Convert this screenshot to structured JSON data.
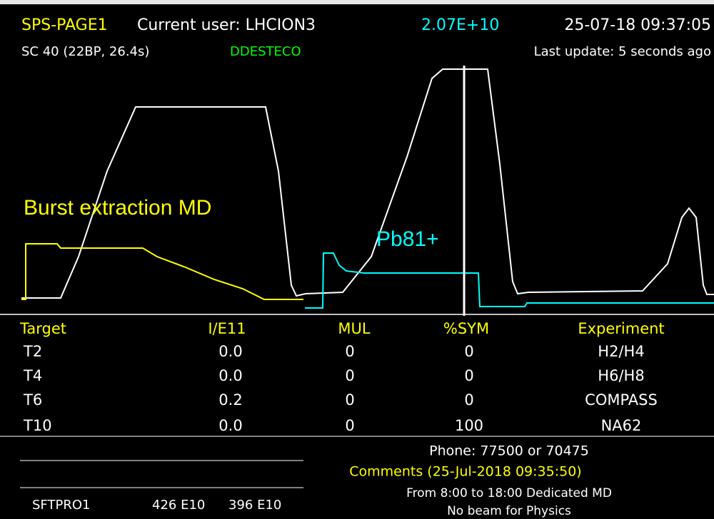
{
  "header": {
    "page": "SPS-PAGE1",
    "user": "Current user: LHCION3",
    "intensity": "2.07E+10",
    "datetime": "25-07-18 09:37:05",
    "cycle": "SC 40 (22BP, 26.4s)",
    "status": "DDESTECO",
    "last_update": "Last update: 5 seconds ago"
  },
  "annotations": {
    "burst": "Burst extraction MD",
    "ion": "Pb81+"
  },
  "table": {
    "columns": [
      "Target",
      "I/E11",
      "MUL",
      "%SYM",
      "Experiment"
    ],
    "rows": [
      [
        "T2",
        "0.0",
        "0",
        "0",
        "H2/H4"
      ],
      [
        "T4",
        "0.0",
        "0",
        "0",
        "H6/H8"
      ],
      [
        "T6",
        "0.2",
        "0",
        "0",
        "COMPASS"
      ],
      [
        "T10",
        "0.0",
        "0",
        "100",
        "NA62"
      ]
    ]
  },
  "footer": {
    "phone": "Phone: 77500 or 70475",
    "comments_title": "Comments (25-Jul-2018 09:35:50)",
    "comments": [
      "From 8:00 to 18:00 Dedicated MD",
      "No beam for Physics"
    ],
    "beam": [
      "SFTPRO1",
      "426 E10",
      "396 E10"
    ]
  }
}
